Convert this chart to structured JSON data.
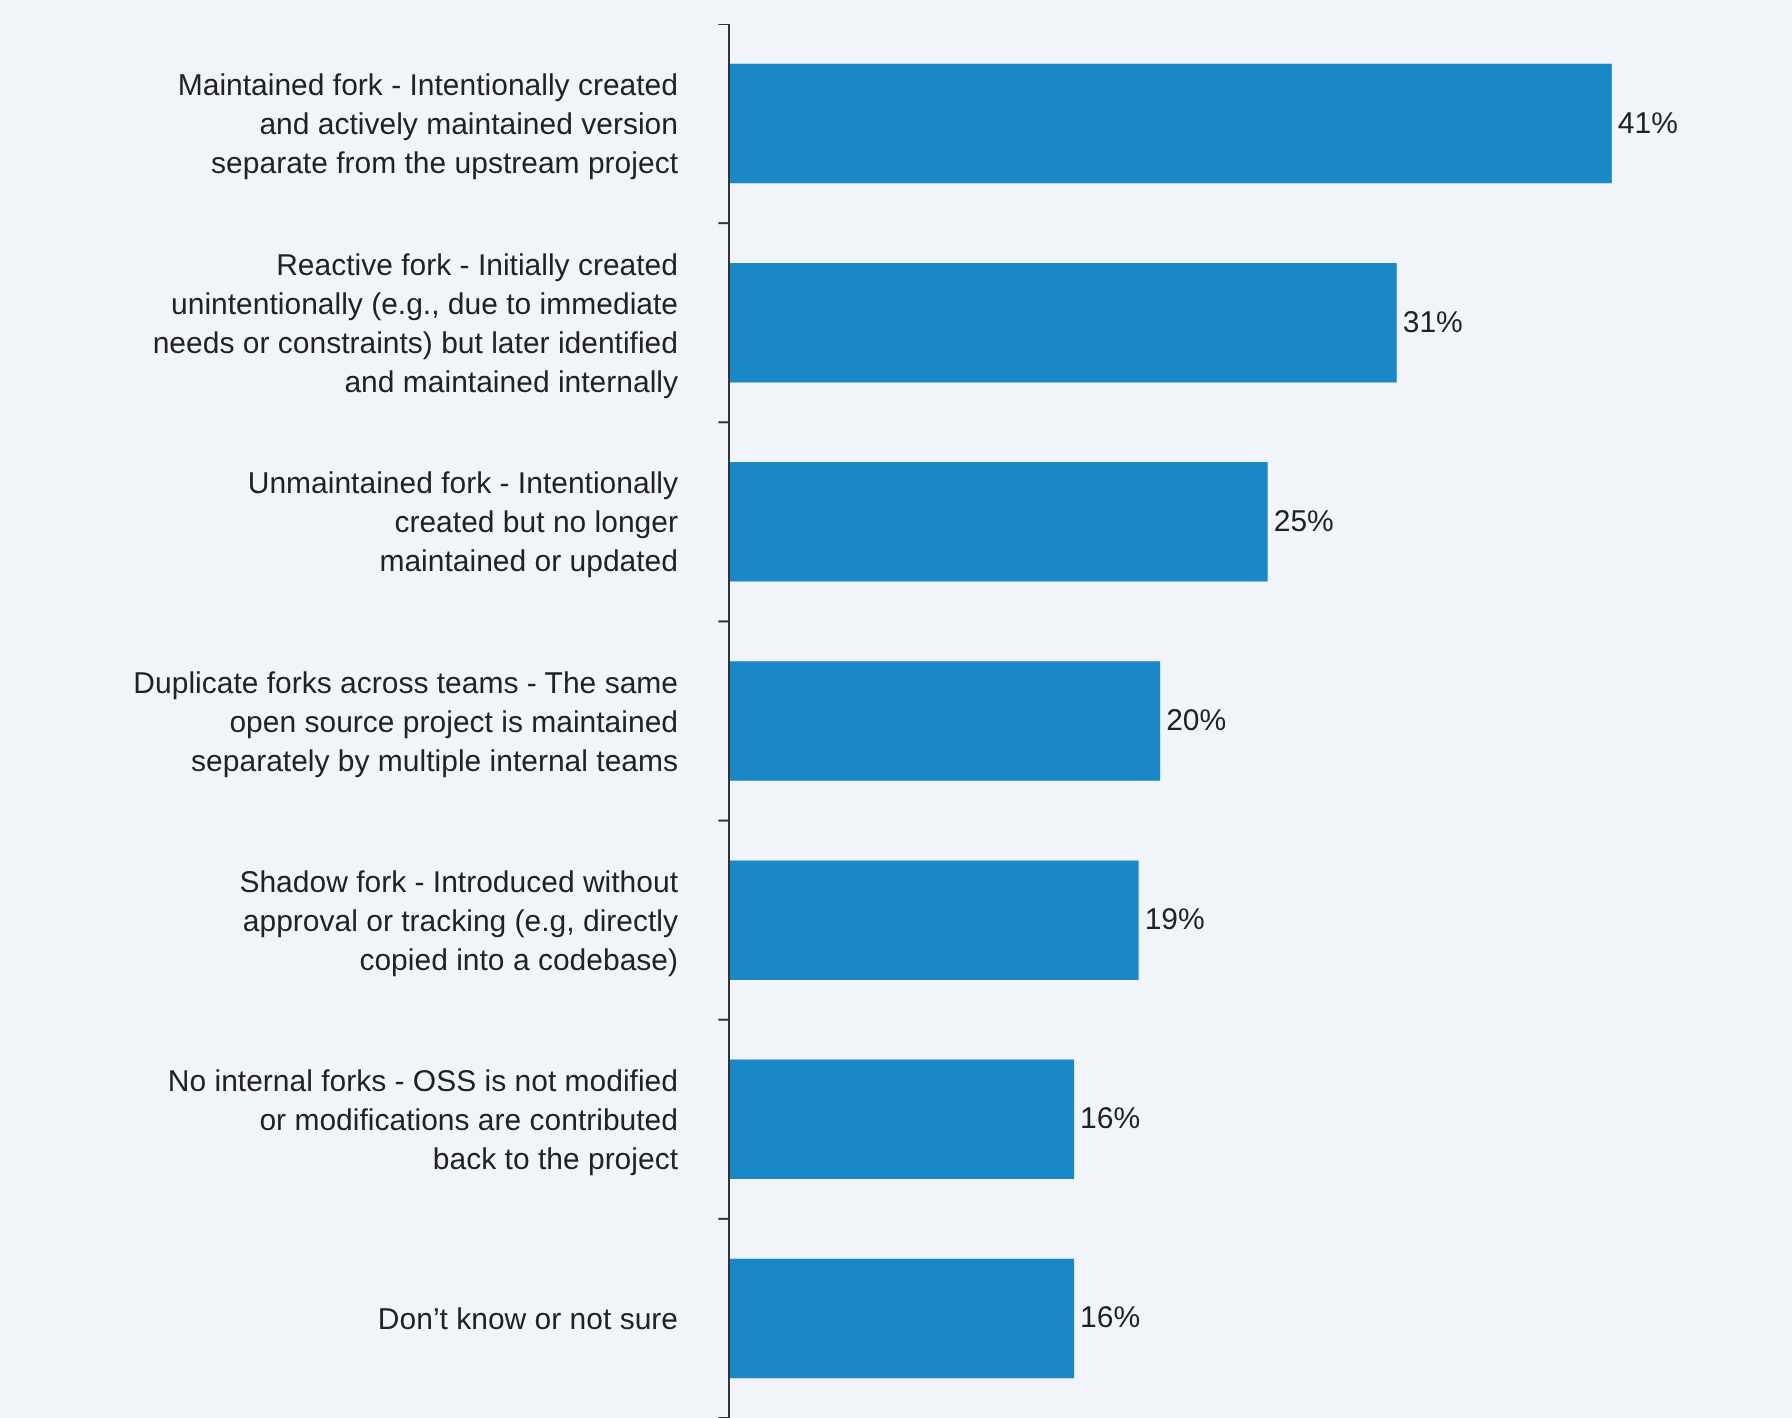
{
  "chart_data": {
    "type": "bar",
    "orientation": "horizontal",
    "categories": [
      "Maintained fork - Intentionally created\nand actively maintained version\nseparate from the upstream project",
      "Reactive fork - Initially created\nunintentionally (e.g., due to immediate\nneeds or constraints) but later identified\nand maintained internally",
      "Unmaintained fork - Intentionally\ncreated but no longer\nmaintained or updated",
      "Duplicate forks across teams - The same\nopen source project is maintained\nseparately by multiple internal teams",
      "Shadow fork - Introduced without\napproval or tracking (e.g, directly\ncopied into a codebase)",
      "No internal forks - OSS is not modified\nor modifications are contributed\nback to the project",
      "Don’t know or not sure"
    ],
    "values": [
      41,
      31,
      25,
      20,
      19,
      16,
      16
    ],
    "value_labels": [
      "41%",
      "31%",
      "25%",
      "20%",
      "19%",
      "16%",
      "16%"
    ],
    "color": "#1a87c6",
    "grid": false,
    "legend": false,
    "tick_labels": "y"
  }
}
